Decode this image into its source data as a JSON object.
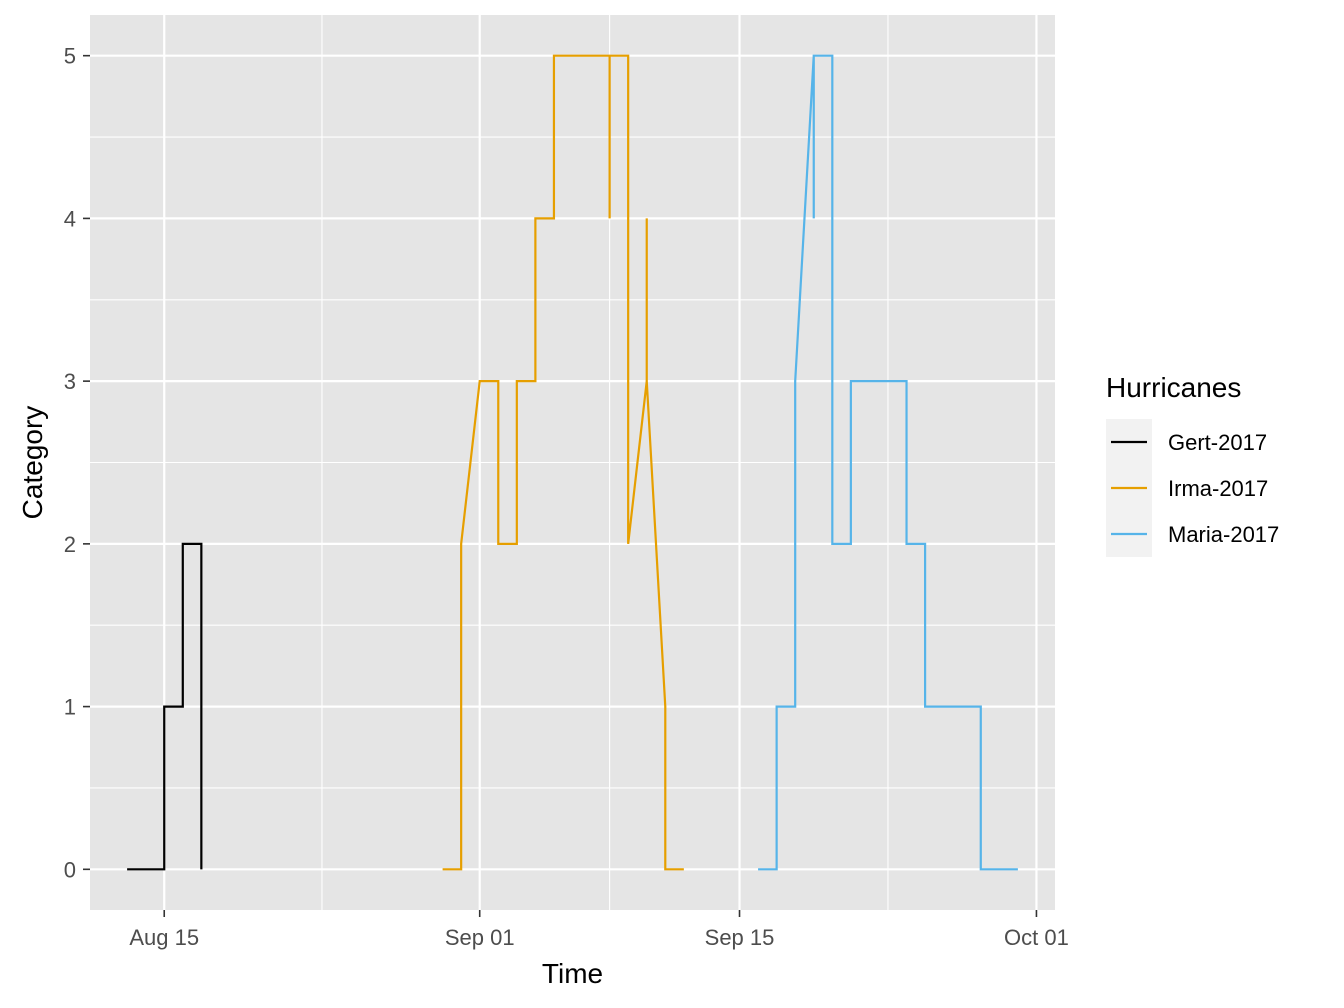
{
  "chart_data": {
    "type": "line",
    "xlabel": "Time",
    "ylabel": "Category",
    "x_ticks": [
      "Aug 15",
      "Sep 01",
      "Sep 15",
      "Oct 01"
    ],
    "x_tick_dates": [
      "2017-08-15",
      "2017-09-01",
      "2017-09-15",
      "2017-10-01"
    ],
    "xlim": [
      "2017-08-11",
      "2017-10-02"
    ],
    "y_ticks": [
      "0",
      "1",
      "2",
      "3",
      "4",
      "5"
    ],
    "ylim": [
      -0.25,
      5.25
    ],
    "grid": true,
    "background": "#e5e5e5",
    "legend": {
      "title": "Hurricanes",
      "position": "right"
    },
    "series": [
      {
        "name": "Gert-2017",
        "color": "#000000",
        "points": [
          [
            "2017-08-13",
            0
          ],
          [
            "2017-08-15",
            0
          ],
          [
            "2017-08-15",
            1
          ],
          [
            "2017-08-16",
            1
          ],
          [
            "2017-08-16",
            2
          ],
          [
            "2017-08-17",
            2
          ],
          [
            "2017-08-17",
            0
          ]
        ]
      },
      {
        "name": "Irma-2017",
        "color": "#E69F00",
        "points": [
          [
            "2017-08-30",
            0
          ],
          [
            "2017-08-31",
            0
          ],
          [
            "2017-08-31",
            2
          ],
          [
            "2017-09-01",
            3
          ],
          [
            "2017-09-02",
            3
          ],
          [
            "2017-09-02",
            2
          ],
          [
            "2017-09-03",
            2
          ],
          [
            "2017-09-03",
            3
          ],
          [
            "2017-09-04",
            3
          ],
          [
            "2017-09-04",
            4
          ],
          [
            "2017-09-05",
            4
          ],
          [
            "2017-09-05",
            5
          ],
          [
            "2017-09-08",
            5
          ],
          [
            "2017-09-08",
            4
          ],
          [
            "2017-09-08",
            5
          ],
          [
            "2017-09-09",
            5
          ],
          [
            "2017-09-09",
            2
          ],
          [
            "2017-09-10",
            3
          ],
          [
            "2017-09-10",
            4
          ],
          [
            "2017-09-10",
            3
          ],
          [
            "2017-09-11",
            1
          ],
          [
            "2017-09-11",
            0
          ],
          [
            "2017-09-12",
            0
          ]
        ]
      },
      {
        "name": "Maria-2017",
        "color": "#56B4E9",
        "points": [
          [
            "2017-09-16",
            0
          ],
          [
            "2017-09-17",
            0
          ],
          [
            "2017-09-17",
            1
          ],
          [
            "2017-09-18",
            1
          ],
          [
            "2017-09-18",
            3
          ],
          [
            "2017-09-19",
            5
          ],
          [
            "2017-09-19",
            4
          ],
          [
            "2017-09-19",
            5
          ],
          [
            "2017-09-20",
            5
          ],
          [
            "2017-09-20",
            2
          ],
          [
            "2017-09-21",
            2
          ],
          [
            "2017-09-21",
            3
          ],
          [
            "2017-09-24",
            3
          ],
          [
            "2017-09-24",
            2
          ],
          [
            "2017-09-25",
            2
          ],
          [
            "2017-09-25",
            1
          ],
          [
            "2017-09-28",
            1
          ],
          [
            "2017-09-28",
            0
          ],
          [
            "2017-09-30",
            0
          ]
        ]
      }
    ]
  }
}
